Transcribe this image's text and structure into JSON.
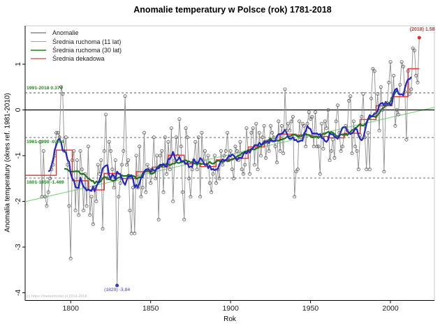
{
  "header": {
    "title": "Anomalie temperatury w Polsce (rok) 1781-2018"
  },
  "legend": {
    "items": [
      {
        "label": "Anomalie",
        "color": "#a5a5a5"
      },
      {
        "label": "Średnia ruchoma (11 lat)",
        "color": "#9a9ae0"
      },
      {
        "label": "Średnia ruchoma (30 lat)",
        "color": "#55a055"
      },
      {
        "label": "Średnia dekadowa",
        "color": "#ec8a8a"
      }
    ]
  },
  "axes": {
    "x_label": "Rok",
    "y_label": "Anomalia temperatury (okres ref. 1981-2010)",
    "x_ticks": [
      "1800",
      "1850",
      "1900",
      "1950",
      "2000"
    ],
    "y_ticks": [
      "1",
      "0",
      "-1",
      "-2",
      "-3",
      "-4"
    ]
  },
  "reference_lines": [
    {
      "label": "1991-2018 0.374",
      "value": 0.374,
      "label_side": "above"
    },
    {
      "label": "1961-1990 -0.604",
      "value": -0.604,
      "label_side": "below"
    },
    {
      "label": "1801-1850 -1.489",
      "value": -1.489,
      "label_side": "below"
    }
  ],
  "annotations": {
    "max": {
      "label": "(2018) 1.58",
      "year": 2018,
      "value": 1.58,
      "color": "#e03030"
    },
    "min": {
      "label": "(1829) -3.84",
      "year": 1829,
      "value": -3.84,
      "color": "#3b3bc0"
    }
  },
  "watermark": "(c) https://meteomodel.pl 2014-2018",
  "chart_data": {
    "type": "line",
    "title": "Anomalie temperatury w Polsce (rok) 1781-2018",
    "xlabel": "Rok",
    "ylabel": "Anomalia temperatury (okres ref. 1981-2010)",
    "grid": false,
    "legend_position": "top-left",
    "xlim": [
      1771.5,
      2027.5
    ],
    "ylim": [
      -4.16,
      1.85
    ],
    "x_tick_values": [
      1800,
      1850,
      1900,
      1950,
      2000
    ],
    "y_tick_values": [
      1,
      0,
      -1,
      -2,
      -3,
      -4
    ],
    "x_start": 1781,
    "x_end": 2018,
    "zero_line": 0,
    "series": [
      {
        "name": "Anomalie",
        "kind": "yearly",
        "color": "#909090",
        "marker_color": "#5e5e5e",
        "values": [
          -0.7,
          -1.9,
          -0.9,
          -1.9,
          -2.1,
          -1.8,
          -1.5,
          -1.3,
          -1.2,
          -1.0,
          -0.5,
          -0.5,
          -0.6,
          0.5,
          0.35,
          -0.9,
          -0.6,
          -1.2,
          -2.1,
          -3.25,
          -1.1,
          -0.9,
          -2.2,
          -1.1,
          -2.3,
          -0.9,
          -1.3,
          -2.2,
          -1.4,
          -2.1,
          -0.8,
          -2.3,
          -1.9,
          -2.5,
          -1.7,
          -2.0,
          -1.2,
          -1.4,
          -1.1,
          -2.6,
          -0.9,
          -0.1,
          -1.5,
          -0.7,
          -0.9,
          -1.3,
          -1.7,
          -1.1,
          -3.84,
          -1.9,
          -1.6,
          -1.2,
          -0.9,
          0.3,
          -1.2,
          -1.1,
          -2.2,
          -2.7,
          -1.7,
          -2.7,
          -1.0,
          -1.7,
          -0.8,
          -1.9,
          -1.7,
          -0.5,
          -1.8,
          -1.2,
          -1.3,
          -1.6,
          -1.3,
          -0.6,
          -1.5,
          -1.0,
          -2.4,
          -1.0,
          -0.9,
          -1.8,
          -0.6,
          -1.4,
          -0.7,
          -1.3,
          -0.4,
          -2.0,
          -1.1,
          -0.6,
          -1.0,
          -0.2,
          -0.8,
          -1.8,
          -2.4,
          -0.4,
          -0.6,
          -1.5,
          -1.9,
          -1.3,
          -1.1,
          -0.7,
          -1.3,
          -0.6,
          -1.9,
          -0.5,
          -1.1,
          -0.9,
          -1.2,
          -1.0,
          -1.6,
          -1.8,
          -1.4,
          -1.0,
          -1.6,
          -1.3,
          -1.5,
          -0.9,
          -1.2,
          -1.0,
          -0.9,
          -0.5,
          -1.1,
          -0.9,
          -1.3,
          -1.5,
          -0.8,
          -0.9,
          -1.1,
          -0.7,
          -1.3,
          -1.4,
          -1.2,
          -0.4,
          -0.9,
          -1.4,
          -0.5,
          -0.4,
          -1.2,
          -0.3,
          -1.3,
          -0.5,
          -1.0,
          -0.6,
          -0.35,
          -1.05,
          -0.7,
          -0.9,
          -0.35,
          -0.5,
          -0.6,
          -0.8,
          -1.15,
          -0.25,
          -0.9,
          -0.35,
          -0.95,
          0.45,
          -0.45,
          -0.3,
          -0.45,
          -0.25,
          -0.15,
          -1.9,
          -1.35,
          -1.3,
          -0.25,
          -0.6,
          -0.3,
          -0.35,
          -0.8,
          -0.3,
          -0.05,
          -0.2,
          -0.15,
          -0.8,
          -0.05,
          -0.8,
          -0.8,
          -1.4,
          -0.3,
          -0.85,
          -0.25,
          -0.4,
          0.0,
          -1.1,
          -0.9,
          -0.65,
          -1.05,
          -0.25,
          0.1,
          -0.5,
          -0.9,
          -0.8,
          -0.55,
          -0.35,
          -0.45,
          0.2,
          0.3,
          -0.95,
          -0.25,
          -0.8,
          -0.9,
          -1.3,
          -0.55,
          -0.15,
          0.35,
          -0.6,
          -1.3,
          -0.5,
          -1.3,
          0.25,
          0.9,
          0.85,
          -0.1,
          0.35,
          -0.45,
          0.5,
          0.0,
          -1.35,
          0.1,
          0.15,
          0.6,
          1.05,
          0.25,
          0.75,
          -0.35,
          0.0,
          -0.1,
          0.55,
          1.05,
          0.95,
          0.4,
          -0.65,
          0.85,
          0.35,
          0.45,
          1.35,
          1.3,
          0.75,
          0.6,
          1.58
        ]
      },
      {
        "name": "Średnia ruchoma (11 lat)",
        "kind": "moving-average",
        "window": 11,
        "color": "#2525c8"
      },
      {
        "name": "Średnia ruchoma (30 lat)",
        "kind": "moving-average",
        "window": 30,
        "color": "#1d741d"
      }
    ],
    "decadal": {
      "name": "Średnia dekadowa",
      "color": "#e23333",
      "starts": [
        1781,
        1791,
        1801,
        1811,
        1821,
        1831,
        1841,
        1851,
        1861,
        1871,
        1881,
        1891,
        1901,
        1911,
        1921,
        1931,
        1941,
        1951,
        1961,
        1971,
        1981,
        1991,
        2001,
        2011
      ],
      "values": [
        -1.43,
        -0.88,
        -1.55,
        -1.75,
        -1.39,
        -1.5,
        -1.35,
        -1.25,
        -0.99,
        -1.18,
        -1.24,
        -1.09,
        -1.06,
        -0.81,
        -0.67,
        -0.53,
        -0.55,
        -0.58,
        -0.61,
        -0.51,
        -0.21,
        0.09,
        0.29,
        0.9
      ]
    },
    "trend_line": {
      "x1": 1781,
      "y1": -1.93,
      "x2": 2018,
      "y2": -0.02,
      "color": "#7cd67c"
    },
    "reference_values": [
      0.374,
      -0.604,
      -1.489
    ]
  }
}
